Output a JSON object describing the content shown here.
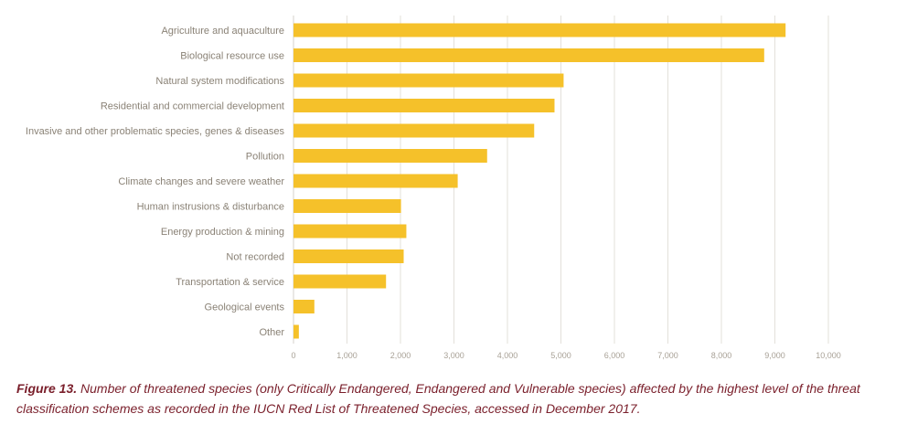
{
  "chart_data": {
    "type": "bar",
    "orientation": "horizontal",
    "categories": [
      "Agriculture and aquaculture",
      "Biological resource use",
      "Natural system modifications",
      "Residential and commercial development",
      "Invasive and other problematic species, genes & diseases",
      "Pollution",
      "Climate changes and severe weather",
      "Human instrusions & disturbance",
      "Energy production & mining",
      "Not recorded",
      "Transportation & service",
      "Geological events",
      "Other"
    ],
    "values": [
      9200,
      8800,
      5050,
      4880,
      4500,
      3620,
      3070,
      2010,
      2110,
      2060,
      1730,
      390,
      100
    ],
    "xlim": [
      0,
      10000
    ],
    "xticks": [
      0,
      1000,
      2000,
      3000,
      4000,
      5000,
      6000,
      7000,
      8000,
      9000,
      10000
    ],
    "xtick_labels": [
      "0",
      "1,000",
      "2,000",
      "3,000",
      "4,000",
      "5,000",
      "6,000",
      "7,000",
      "8,000",
      "9,000",
      "10,000"
    ],
    "grid": true,
    "bar_color": "#f5c12a",
    "grid_color": "#e3e0da"
  },
  "caption": {
    "figure_label": "Figure 13.",
    "text": " Number of threatened species (only Critically Endangered, Endangered and Vulnerable species) affected by the highest level of the threat classification schemes as recorded in the IUCN Red List of Threatened Species, accessed in December 2017."
  }
}
